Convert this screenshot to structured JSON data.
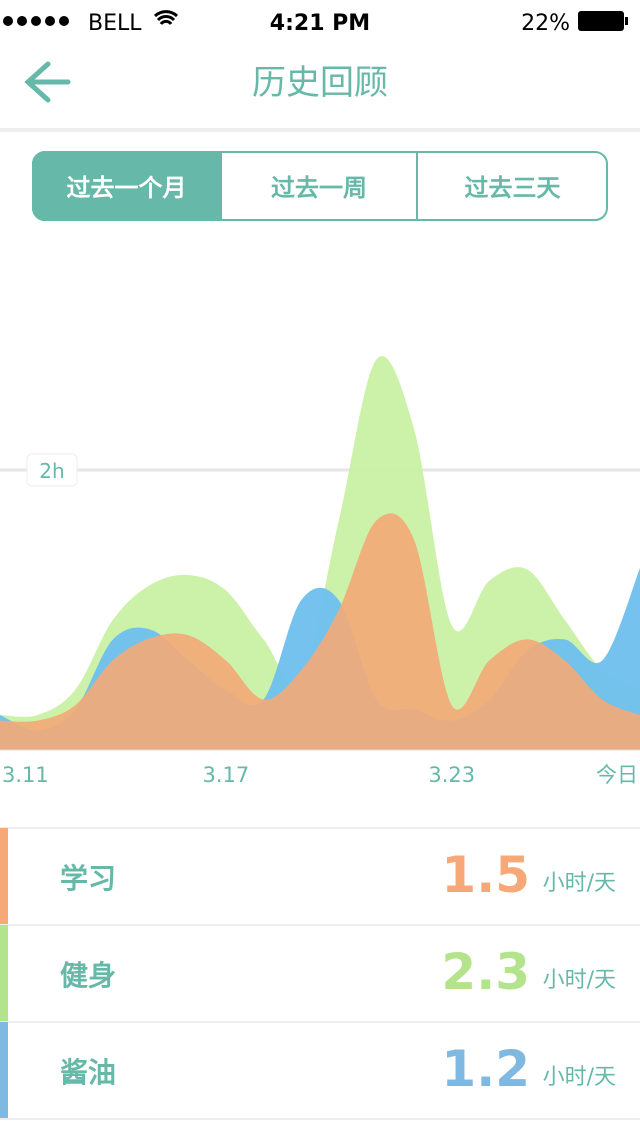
{
  "status": {
    "carrier": "BELL",
    "time": "4:21 PM",
    "battery": "22%"
  },
  "header": {
    "title": "历史回顾"
  },
  "tabs": {
    "items": [
      "过去一个月",
      "过去一周",
      "过去三天"
    ],
    "active": 0
  },
  "chart_data": {
    "type": "area",
    "categories": [
      "3.11",
      null,
      null,
      null,
      null,
      null,
      "3.17",
      null,
      null,
      null,
      null,
      null,
      "3.23",
      null,
      null,
      null,
      null,
      "今日"
    ],
    "ylim": [
      0,
      3.3
    ],
    "yticks": [
      {
        "value": 2,
        "label": "2h"
      }
    ],
    "series": [
      {
        "name": "健身",
        "color": "#c9f0a4",
        "values": [
          0.25,
          0.25,
          0.43,
          0.93,
          1.18,
          1.25,
          1.14,
          0.79,
          0.5,
          1.64,
          2.79,
          2.29,
          0.89,
          1.21,
          1.29,
          0.93,
          0.57,
          0.43
        ]
      },
      {
        "name": "酱油",
        "color": "#6ebfee",
        "values": [
          0.25,
          0.14,
          0.29,
          0.79,
          0.86,
          0.64,
          0.43,
          0.36,
          1.07,
          1.07,
          0.36,
          0.29,
          0.21,
          0.36,
          0.71,
          0.79,
          0.64,
          1.3
        ]
      },
      {
        "name": "学习",
        "color": "#f2aa78",
        "values": [
          0.21,
          0.21,
          0.32,
          0.64,
          0.8,
          0.82,
          0.64,
          0.36,
          0.57,
          1.0,
          1.64,
          1.5,
          0.32,
          0.64,
          0.79,
          0.64,
          0.36,
          0.25
        ]
      }
    ]
  },
  "summary": {
    "unit": "小时/天",
    "rows": [
      {
        "name": "学习",
        "value": 1.5,
        "color": "#f7a878"
      },
      {
        "name": "健身",
        "value": 2.3,
        "color": "#b3e38a"
      },
      {
        "name": "酱油",
        "value": 1.2,
        "color": "#7fb8e0"
      }
    ]
  }
}
